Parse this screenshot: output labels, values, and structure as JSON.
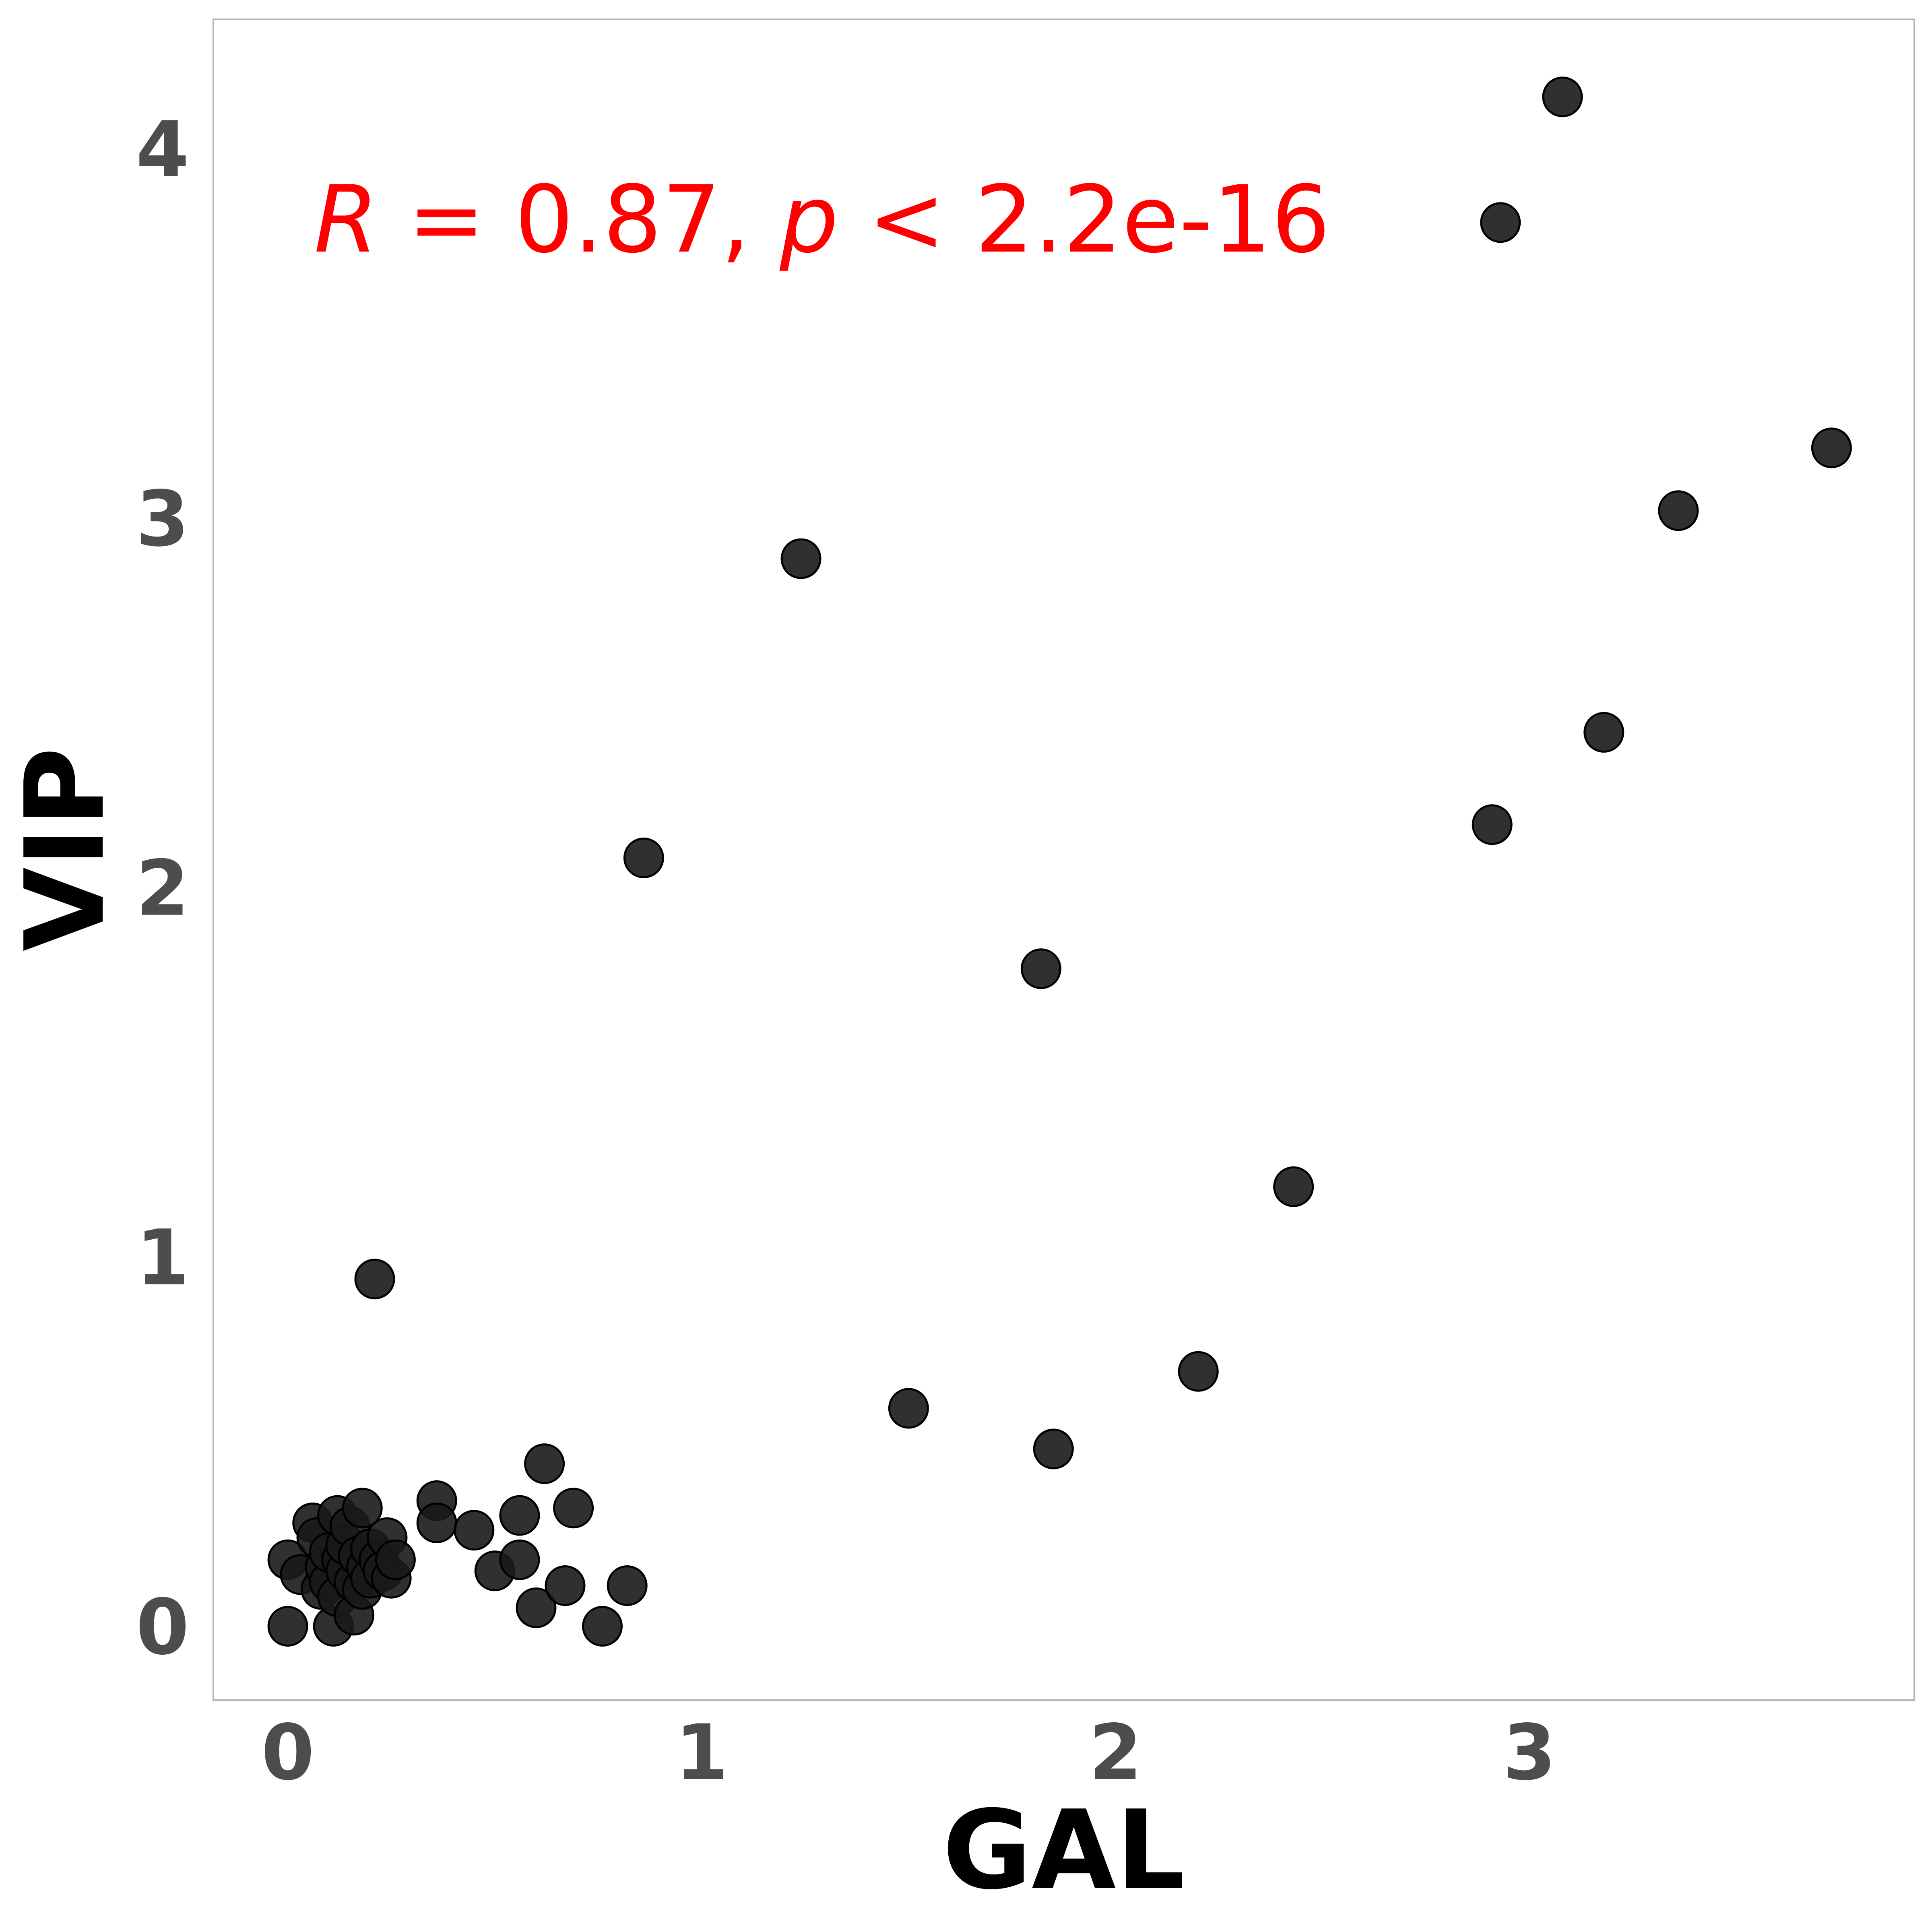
{
  "chart_data": {
    "type": "scatter",
    "xlabel": "GAL",
    "ylabel": "VIP",
    "xlim": [
      -0.18,
      3.93
    ],
    "ylim": [
      -0.2,
      4.35
    ],
    "x_ticks": [
      0,
      1,
      2,
      3
    ],
    "y_ticks": [
      0,
      1,
      2,
      3,
      4
    ],
    "grid": false,
    "point_color": "#1a1a1a",
    "annotation": {
      "r_symbol": "R",
      "r_text": " = 0.87, ",
      "p_symbol": "p",
      "p_text": " < 2.2e-16",
      "color": "#ff0000"
    },
    "series": [
      {
        "points": [
          [
            0.0,
            0.0
          ],
          [
            0.0,
            0.18
          ],
          [
            0.03,
            0.14
          ],
          [
            0.06,
            0.28
          ],
          [
            0.07,
            0.24
          ],
          [
            0.08,
            0.1
          ],
          [
            0.09,
            0.16
          ],
          [
            0.1,
            0.12
          ],
          [
            0.1,
            0.2
          ],
          [
            0.11,
            0.0
          ],
          [
            0.12,
            0.3
          ],
          [
            0.12,
            0.08
          ],
          [
            0.13,
            0.18
          ],
          [
            0.14,
            0.15
          ],
          [
            0.14,
            0.22
          ],
          [
            0.15,
            0.27
          ],
          [
            0.16,
            0.03
          ],
          [
            0.16,
            0.12
          ],
          [
            0.17,
            0.19
          ],
          [
            0.18,
            0.32
          ],
          [
            0.18,
            0.1
          ],
          [
            0.19,
            0.16
          ],
          [
            0.2,
            0.21
          ],
          [
            0.2,
            0.13
          ],
          [
            0.21,
            0.94
          ],
          [
            0.22,
            0.18
          ],
          [
            0.23,
            0.15
          ],
          [
            0.24,
            0.24
          ],
          [
            0.25,
            0.13
          ],
          [
            0.26,
            0.18
          ],
          [
            0.36,
            0.34
          ],
          [
            0.36,
            0.28
          ],
          [
            0.45,
            0.26
          ],
          [
            0.5,
            0.15
          ],
          [
            0.56,
            0.3
          ],
          [
            0.56,
            0.18
          ],
          [
            0.6,
            0.05
          ],
          [
            0.62,
            0.44
          ],
          [
            0.67,
            0.11
          ],
          [
            0.69,
            0.32
          ],
          [
            0.76,
            0.0
          ],
          [
            0.82,
            0.11
          ],
          [
            0.86,
            2.08
          ],
          [
            1.24,
            2.89
          ],
          [
            1.5,
            0.59
          ],
          [
            1.82,
            1.78
          ],
          [
            1.85,
            0.48
          ],
          [
            2.2,
            0.69
          ],
          [
            2.43,
            1.19
          ],
          [
            2.91,
            2.17
          ],
          [
            2.93,
            3.8
          ],
          [
            3.08,
            4.14
          ],
          [
            3.18,
            2.42
          ],
          [
            3.36,
            3.02
          ],
          [
            3.73,
            3.19
          ]
        ]
      }
    ]
  }
}
